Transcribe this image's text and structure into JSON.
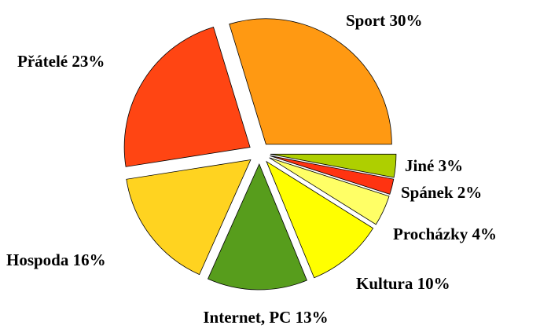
{
  "chart_data": {
    "type": "pie",
    "categories": [
      "Sport",
      "Přátelé",
      "Hospoda",
      "Internet, PC",
      "Kultura",
      "Procházky",
      "Spánek",
      "Jiné"
    ],
    "values": [
      30,
      23,
      16,
      13,
      10,
      4,
      2,
      3
    ],
    "value_labels": [
      "30%",
      "23%",
      "16%",
      "13%",
      "10%",
      "4%",
      "2%",
      "3%"
    ],
    "colors": [
      "#ff9912",
      "#ff4513",
      "#ffd320",
      "#579d1c",
      "#ffff00",
      "#ffff66",
      "#ff3311",
      "#aecf00"
    ]
  }
}
